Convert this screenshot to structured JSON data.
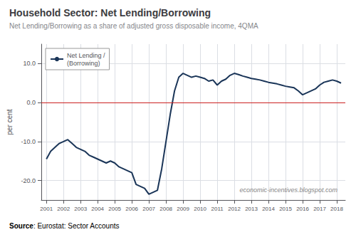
{
  "chart_data": {
    "type": "line",
    "title": "Household Sector: Net Lending/Borrowing",
    "subtitle": "Net Lending/Borrowing as a share of adjusted gross disposable income, 4QMA",
    "ylabel": "per cent",
    "source": "Source: Eurostat: Sector Accounts",
    "watermark": "economic-incentives.blogspot.com",
    "x": [
      2001.0,
      2001.25,
      2001.5,
      2001.75,
      2002.0,
      2002.25,
      2002.5,
      2002.75,
      2003.0,
      2003.25,
      2003.5,
      2003.75,
      2004.0,
      2004.25,
      2004.5,
      2004.75,
      2005.0,
      2005.25,
      2005.5,
      2005.75,
      2006.0,
      2006.25,
      2006.5,
      2006.75,
      2007.0,
      2007.25,
      2007.5,
      2007.75,
      2008.0,
      2008.25,
      2008.5,
      2008.75,
      2009.0,
      2009.25,
      2009.5,
      2009.75,
      2010.0,
      2010.25,
      2010.5,
      2010.75,
      2011.0,
      2011.25,
      2011.5,
      2011.75,
      2012.0,
      2012.25,
      2012.5,
      2012.75,
      2013.0,
      2013.25,
      2013.5,
      2013.75,
      2014.0,
      2014.25,
      2014.5,
      2014.75,
      2015.0,
      2015.25,
      2015.5,
      2015.75,
      2016.0,
      2016.25,
      2016.5,
      2016.75,
      2017.0,
      2017.25,
      2017.5,
      2017.75,
      2018.0,
      2018.25
    ],
    "series": [
      {
        "name": "Net Lending /\n(Borrowing)",
        "color": "#1a3558",
        "values": [
          -14.5,
          -12.5,
          -11.5,
          -10.5,
          -10.0,
          -9.5,
          -10.5,
          -11.5,
          -12.0,
          -12.5,
          -13.5,
          -14.0,
          -14.5,
          -15.0,
          -15.5,
          -15.0,
          -15.5,
          -16.5,
          -17.0,
          -17.5,
          -18.0,
          -21.0,
          -21.5,
          -22.0,
          -23.5,
          -23.0,
          -22.5,
          -17.0,
          -10.0,
          -3.0,
          3.0,
          6.5,
          7.5,
          7.0,
          6.5,
          6.8,
          6.5,
          6.2,
          5.5,
          5.8,
          4.5,
          5.5,
          6.0,
          7.0,
          7.5,
          7.2,
          6.8,
          6.5,
          6.2,
          6.0,
          5.8,
          5.5,
          5.2,
          5.0,
          4.8,
          4.5,
          4.2,
          4.0,
          3.8,
          3.0,
          2.0,
          2.5,
          3.0,
          3.5,
          4.5,
          5.2,
          5.5,
          5.8,
          5.5,
          5.0
        ]
      }
    ],
    "reference_lines": [
      {
        "y": 0,
        "color": "#cc2222"
      }
    ],
    "xlim": [
      2000.7,
      2018.5
    ],
    "xticks": [
      2001,
      2002,
      2003,
      2004,
      2005,
      2006,
      2007,
      2008,
      2009,
      2010,
      2011,
      2012,
      2013,
      2014,
      2015,
      2016,
      2017,
      2018
    ],
    "ylim": [
      -25,
      15
    ],
    "yticks": [
      {
        "value": -20,
        "label": "-20.0"
      },
      {
        "value": -10,
        "label": "-10.0"
      },
      {
        "value": 0,
        "label": "0.0"
      },
      {
        "value": 10,
        "label": "10.0"
      }
    ],
    "grid": true,
    "legend": "upper left"
  }
}
